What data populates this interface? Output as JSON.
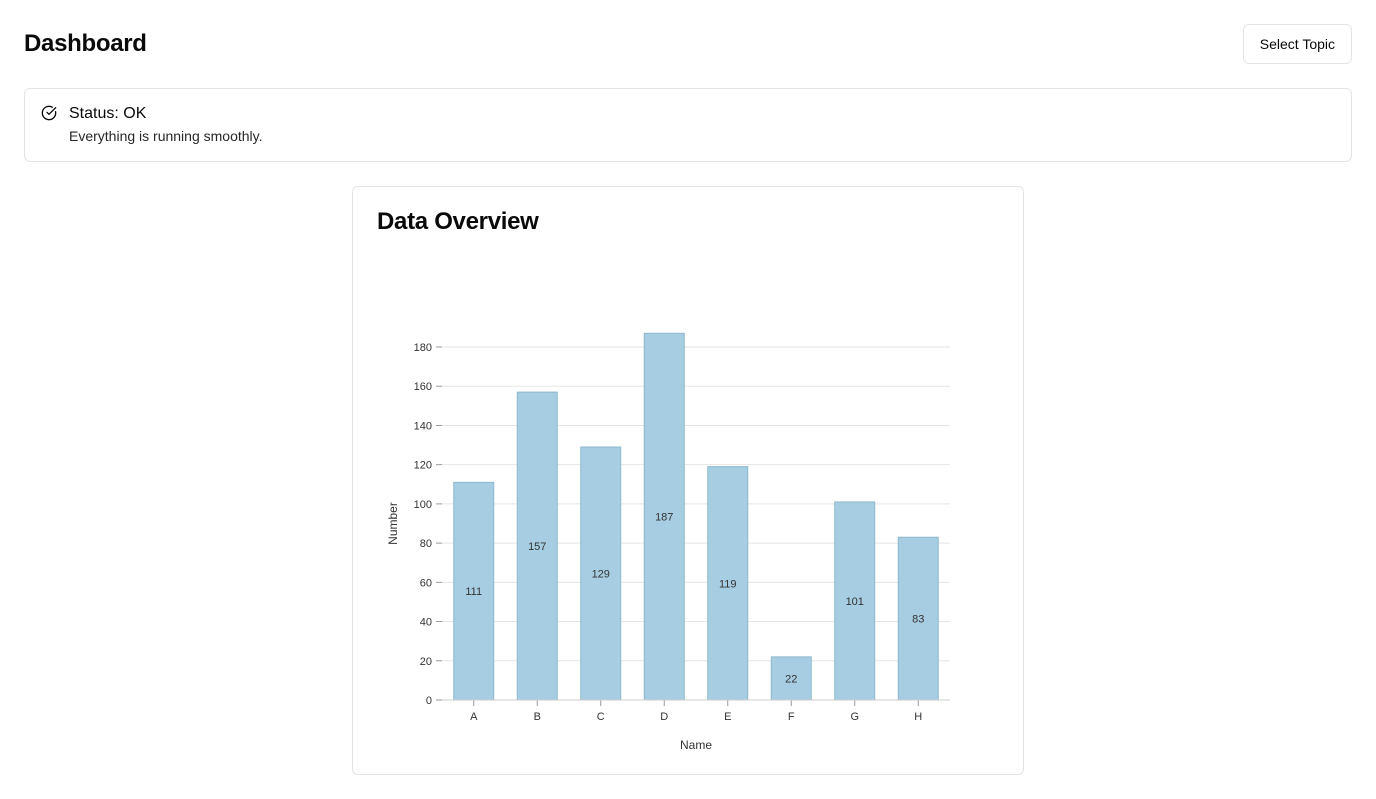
{
  "header": {
    "title": "Dashboard",
    "topic_button_label": "Select Topic"
  },
  "status": {
    "icon": "check-circle-icon",
    "title": "Status: OK",
    "description": "Everything is running smoothly."
  },
  "chart_card": {
    "title": "Data Overview"
  },
  "colors": {
    "bar_fill": "#a6cde2",
    "bar_stroke": "#8fb8cc",
    "grid": "#e5e5e5",
    "border": "#e4e4e7"
  },
  "chart_data": {
    "type": "bar",
    "title": "Data Overview",
    "categories": [
      "A",
      "B",
      "C",
      "D",
      "E",
      "F",
      "G",
      "H"
    ],
    "values": [
      111,
      157,
      129,
      187,
      119,
      22,
      101,
      83
    ],
    "xlabel": "Name",
    "ylabel": "Number",
    "ylim": [
      0,
      180
    ],
    "yticks": [
      0,
      20,
      40,
      60,
      80,
      100,
      120,
      140,
      160,
      180
    ],
    "grid": true,
    "legend": "none",
    "data_labels": true
  }
}
